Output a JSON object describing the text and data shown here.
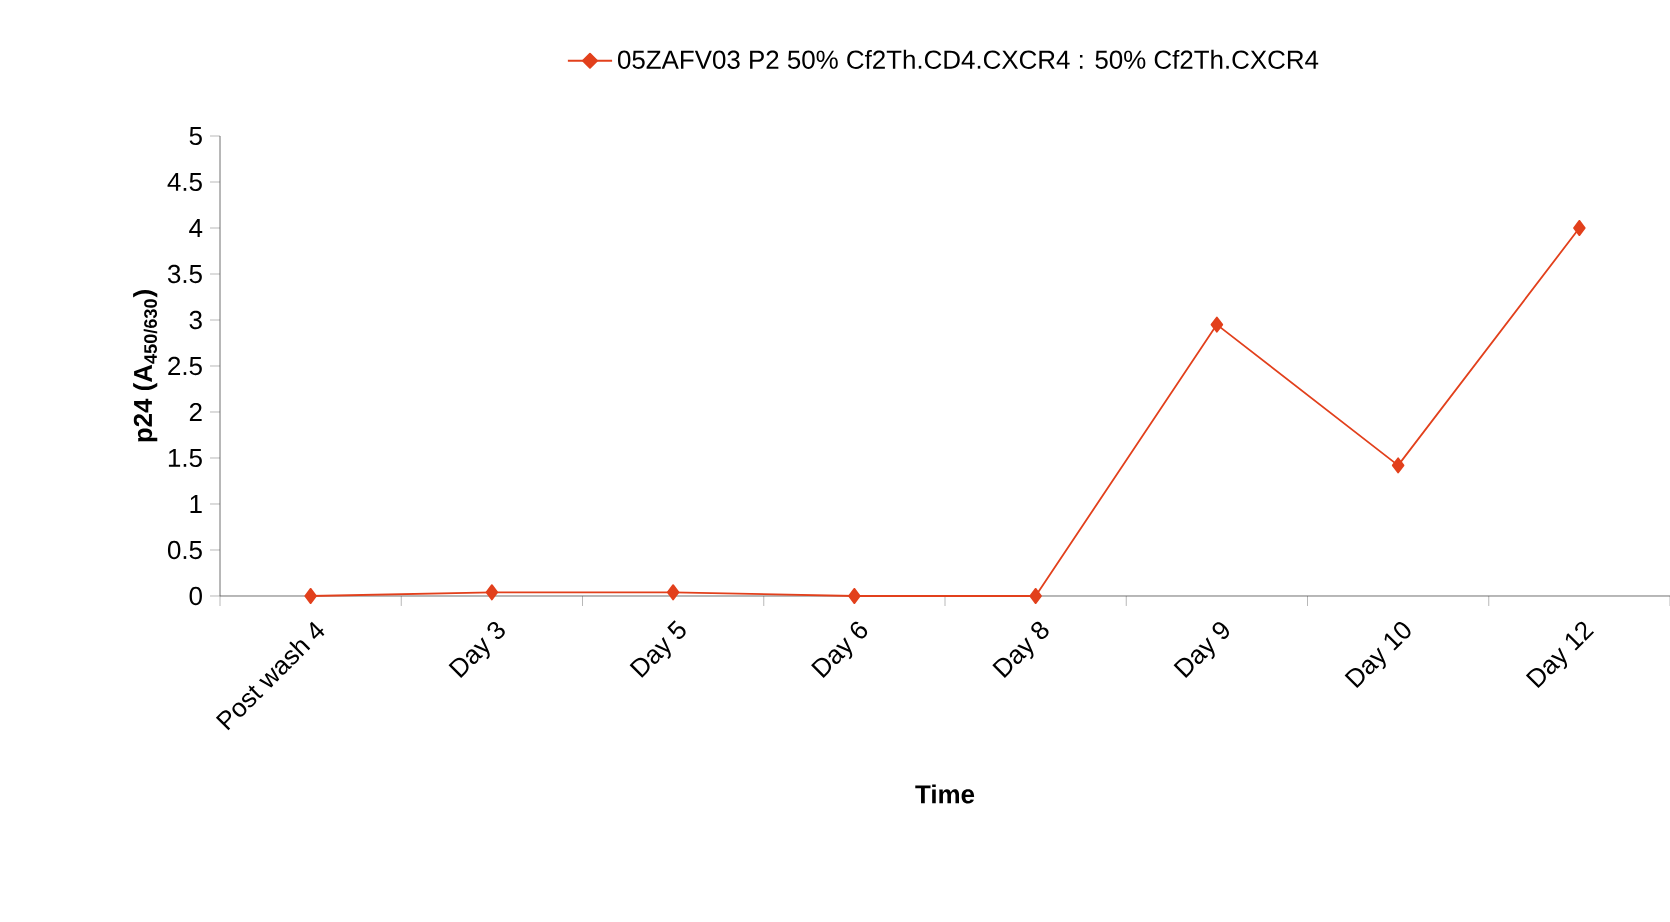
{
  "chart_data": {
    "type": "line",
    "xlabel": "Time",
    "ylabel": "**p24 (A$_{450/630}$)**",
    "categories": [
      "Post wash 4",
      "Day 3",
      "Day 5",
      "Day 6",
      "Day 8",
      "Day 9",
      "Day 10",
      "Day 12"
    ],
    "series": [
      {
        "name": "05ZAFV03 P2 50% Cf2Th.CD4.CXCR4 : 50% Cf2Th.CXCR4",
        "color": "#e2401c",
        "values": [
          0,
          0.04,
          0.04,
          0,
          0,
          2.95,
          1.42,
          4.0
        ]
      }
    ],
    "ylim": [
      0,
      5
    ],
    "yticks": [
      0,
      0.5,
      1,
      1.5,
      2,
      2.5,
      3,
      3.5,
      4,
      4.5,
      5
    ],
    "legend": "top",
    "marker": "diamond",
    "line_style": "solid",
    "grid": false
  }
}
